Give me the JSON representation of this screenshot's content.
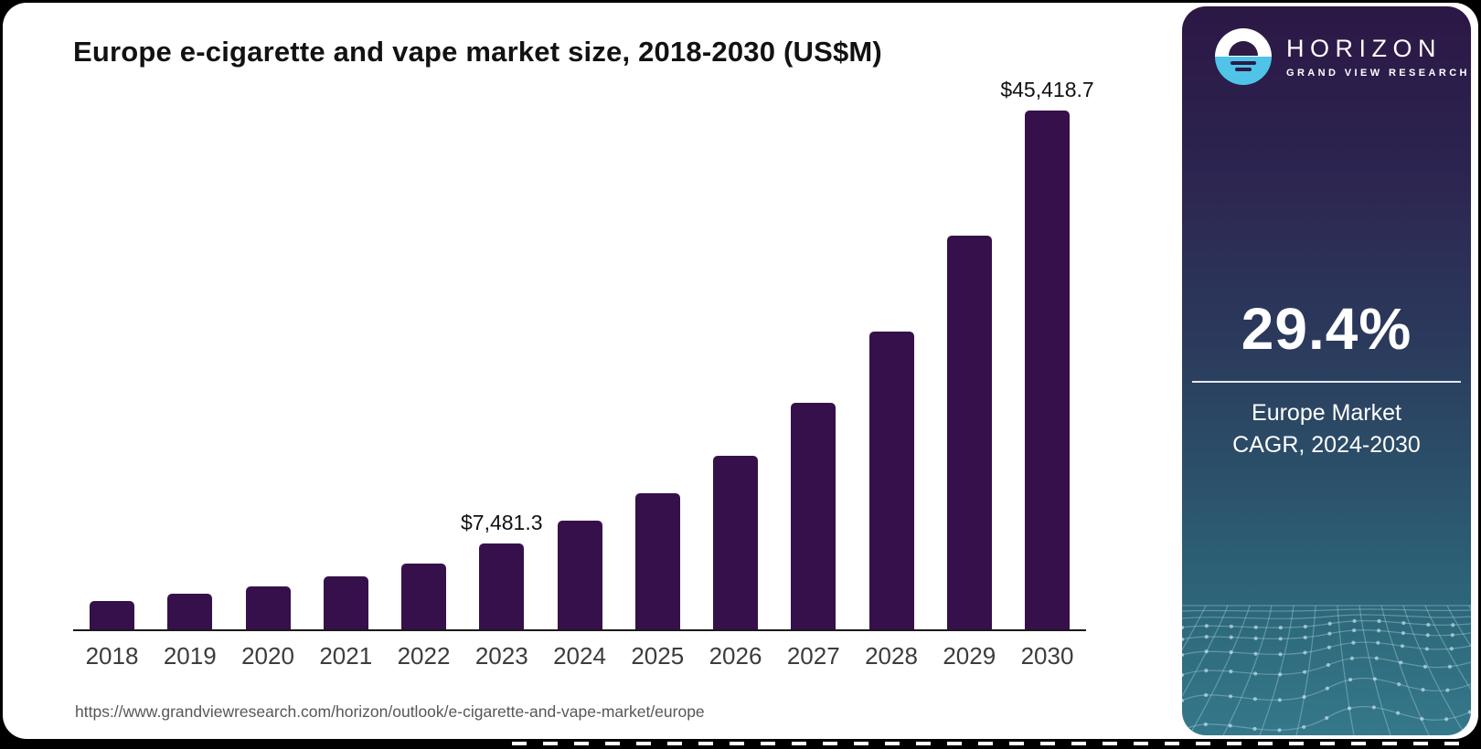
{
  "chart_data": {
    "type": "bar",
    "title": "Europe e-cigarette and vape market size, 2018-2030 (US$M)",
    "xlabel": "",
    "ylabel": "",
    "categories": [
      "2018",
      "2019",
      "2020",
      "2021",
      "2022",
      "2023",
      "2024",
      "2025",
      "2026",
      "2027",
      "2028",
      "2029",
      "2030"
    ],
    "values": [
      2480,
      3080,
      3760,
      4640,
      5720,
      7481.3,
      9550,
      11900,
      15200,
      19800,
      26100,
      34500,
      45418.7
    ],
    "value_labels": {
      "2023": "$7,481.3",
      "2030": "$45,418.7"
    },
    "ylim": [
      0,
      48000
    ],
    "grid": false,
    "legend": "none",
    "bar_color": "#36104b"
  },
  "footer": {
    "source_url": "https://www.grandviewresearch.com/horizon/outlook/e-cigarette-and-vape-market/europe"
  },
  "side_panel": {
    "brand": {
      "name": "HORIZON",
      "subtitle": "GRAND VIEW RESEARCH"
    },
    "stat": {
      "value": "29.4%",
      "label_line1": "Europe Market",
      "label_line2": "CAGR, 2024-2030"
    },
    "colors": {
      "gradient_top": "#2c1745",
      "gradient_bottom": "#35788a",
      "logo_blue": "#4fc4e8",
      "logo_dark": "#2d1a45",
      "text": "#ffffff"
    }
  }
}
